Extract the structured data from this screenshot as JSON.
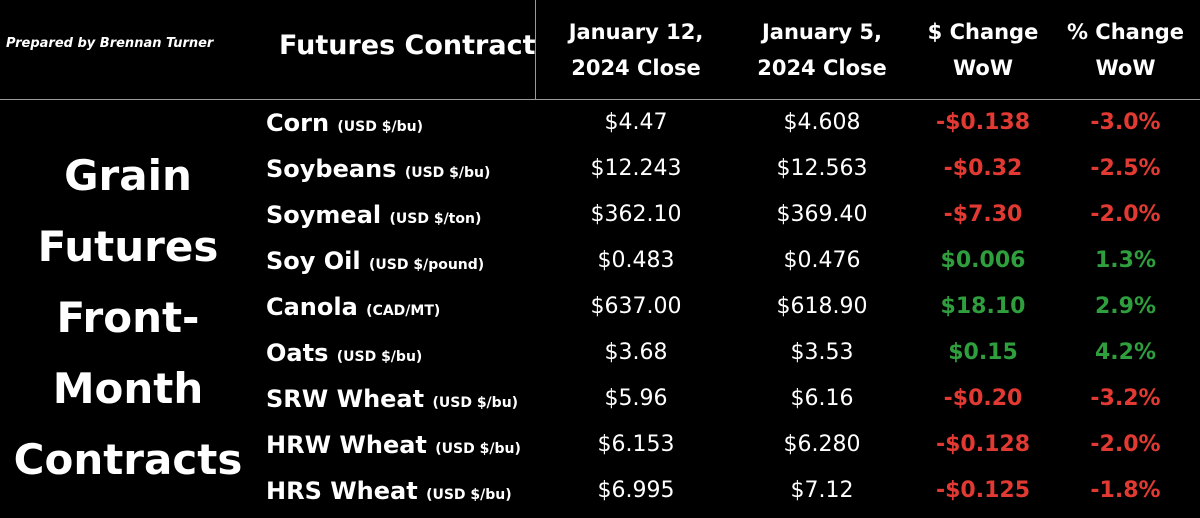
{
  "credit": "Prepared by Brennan Turner",
  "headers": {
    "contract": "Futures Contract",
    "col1_line1": "January 12,",
    "col1_line2": "2024 Close",
    "col2_line1": "January 5,",
    "col2_line2": "2024 Close",
    "col3_line1": "$ Change",
    "col3_line2": "WoW",
    "col4_line1": "% Change",
    "col4_line2": "WoW"
  },
  "side_title": [
    "Grain",
    "Futures",
    "Front-",
    "Month",
    "Contracts"
  ],
  "colors": {
    "negative": "#e23a32",
    "positive": "#2f9e3d",
    "background": "#000000",
    "text": "#ffffff"
  },
  "rows": [
    {
      "name": "Corn",
      "unit": "(USD $/bu)",
      "jan12": "$4.47",
      "jan5": "$4.608",
      "change": "-$0.138",
      "pct": "-3.0%",
      "direction": "neg"
    },
    {
      "name": "Soybeans",
      "unit": "(USD $/bu)",
      "jan12": "$12.243",
      "jan5": "$12.563",
      "change": "-$0.32",
      "pct": "-2.5%",
      "direction": "neg"
    },
    {
      "name": "Soymeal",
      "unit": "(USD $/ton)",
      "jan12": "$362.10",
      "jan5": "$369.40",
      "change": "-$7.30",
      "pct": "-2.0%",
      "direction": "neg"
    },
    {
      "name": "Soy Oil",
      "unit": "(USD $/pound)",
      "jan12": "$0.483",
      "jan5": "$0.476",
      "change": "$0.006",
      "pct": "1.3%",
      "direction": "pos"
    },
    {
      "name": "Canola",
      "unit": "(CAD/MT)",
      "jan12": "$637.00",
      "jan5": "$618.90",
      "change": "$18.10",
      "pct": "2.9%",
      "direction": "pos"
    },
    {
      "name": "Oats",
      "unit": "(USD $/bu)",
      "jan12": "$3.68",
      "jan5": "$3.53",
      "change": "$0.15",
      "pct": "4.2%",
      "direction": "pos"
    },
    {
      "name": "SRW Wheat",
      "unit": "(USD $/bu)",
      "jan12": "$5.96",
      "jan5": "$6.16",
      "change": "-$0.20",
      "pct": "-3.2%",
      "direction": "neg"
    },
    {
      "name": "HRW Wheat",
      "unit": "(USD $/bu)",
      "jan12": "$6.153",
      "jan5": "$6.280",
      "change": "-$0.128",
      "pct": "-2.0%",
      "direction": "neg"
    },
    {
      "name": "HRS Wheat",
      "unit": "(USD $/bu)",
      "jan12": "$6.995",
      "jan5": "$7.12",
      "change": "-$0.125",
      "pct": "-1.8%",
      "direction": "neg"
    }
  ]
}
